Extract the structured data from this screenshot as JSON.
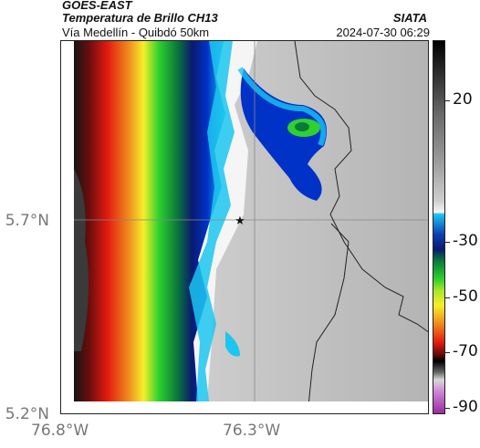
{
  "header": {
    "source": "GOES-EAST",
    "product": "Temperatura de Brillo CH13",
    "organization": "SIATA",
    "region": "Vía Medellín - Quibdó 50km",
    "datetime": "2024-07-30 06:29"
  },
  "axes": {
    "latitude_labels": [
      "5.7°N",
      "5.2°N"
    ],
    "longitude_labels": [
      "76.8°W",
      "76.3°W"
    ]
  },
  "colorbar": {
    "tick_labels": [
      "20",
      "-30",
      "-50",
      "-70",
      "-90"
    ],
    "units_implied": "°C"
  },
  "map": {
    "marker_symbol": "★",
    "marker_color": "#111111",
    "palette": {
      "warm_gray": "#b9b9b9",
      "cloud_white": "#f5f5f5",
      "cyan": "#1cc6f0",
      "blue": "#0032c8",
      "dark_blue": "#0a1a70",
      "green": "#2fd12f",
      "yellow": "#f5ef2a",
      "orange": "#f08a1e",
      "red": "#e11a10",
      "dark_red": "#6a0d0d",
      "black": "#1a1a1a",
      "gray": "#707070"
    }
  }
}
